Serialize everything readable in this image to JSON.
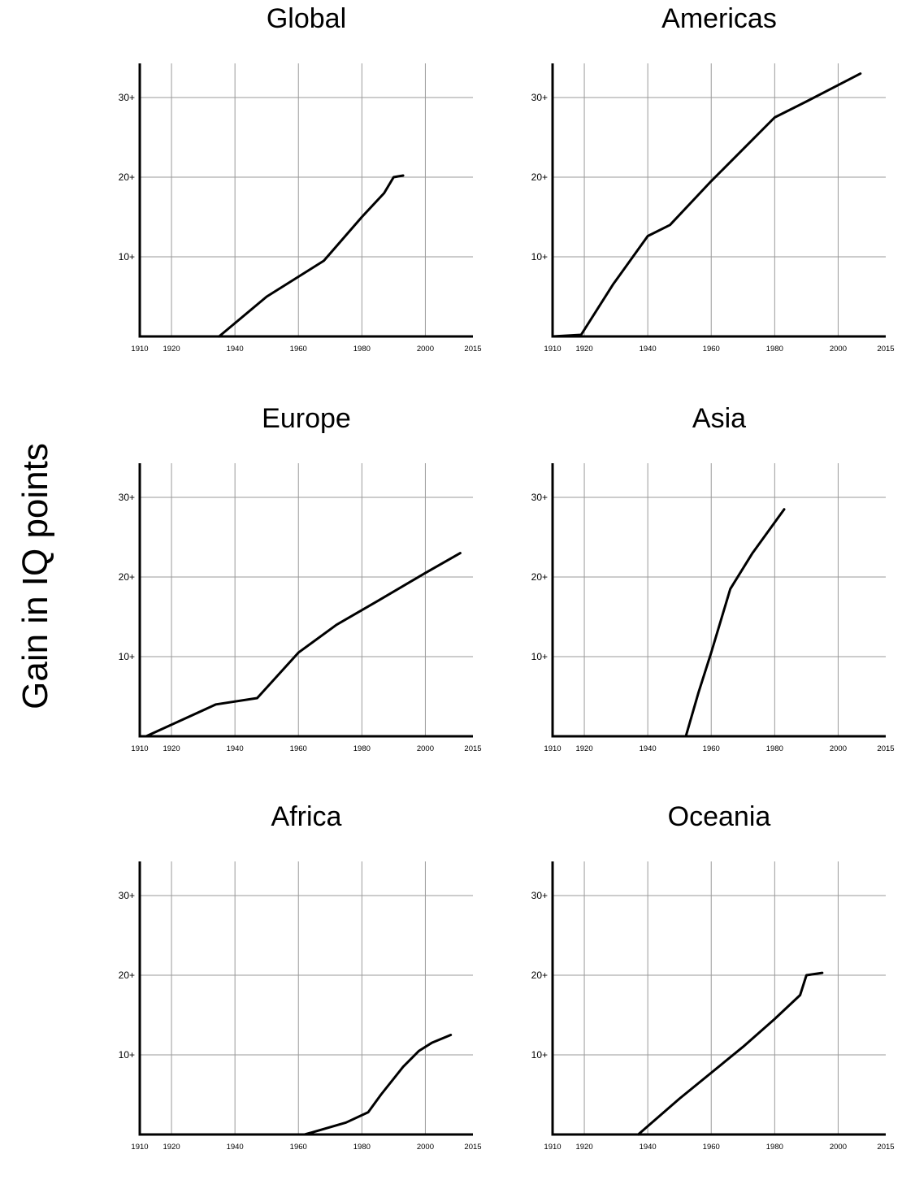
{
  "figure": {
    "ylabel": "Gain in IQ points"
  },
  "chart_data": [
    {
      "type": "line",
      "title": "Global",
      "xlim": [
        1910,
        2015
      ],
      "ylim": [
        0,
        30
      ],
      "xticks": [
        "1910",
        "1920",
        "1940",
        "1960",
        "1980",
        "2000",
        "2015"
      ],
      "yticks": [
        "10+",
        "20+",
        "30+"
      ],
      "grid": true,
      "x": [
        1935,
        1950,
        1968,
        1980,
        1987,
        1990,
        1993
      ],
      "y": [
        0,
        5,
        9.5,
        15,
        18,
        20,
        20.2
      ]
    },
    {
      "type": "line",
      "title": "Americas",
      "xlim": [
        1910,
        2015
      ],
      "ylim": [
        0,
        30
      ],
      "xticks": [
        "1910",
        "1920",
        "1940",
        "1960",
        "1980",
        "2000",
        "2015"
      ],
      "yticks": [
        "10+",
        "20+",
        "30+"
      ],
      "grid": true,
      "x": [
        1910,
        1919,
        1929,
        1940,
        1947,
        1960,
        1970,
        1980,
        1990,
        2007
      ],
      "y": [
        0,
        0.2,
        6.5,
        12.6,
        14,
        19.5,
        23.5,
        27.5,
        29.5,
        33
      ]
    },
    {
      "type": "line",
      "title": "Europe",
      "xlim": [
        1910,
        2015
      ],
      "ylim": [
        0,
        30
      ],
      "xticks": [
        "1910",
        "1920",
        "1940",
        "1960",
        "1980",
        "2000",
        "2015"
      ],
      "yticks": [
        "10+",
        "20+",
        "30+"
      ],
      "grid": true,
      "x": [
        1912,
        1934,
        1947,
        1960,
        1972,
        1985,
        2000,
        2011
      ],
      "y": [
        0,
        4,
        4.8,
        10.5,
        14,
        17,
        20.5,
        23
      ]
    },
    {
      "type": "line",
      "title": "Asia",
      "xlim": [
        1910,
        2015
      ],
      "ylim": [
        0,
        30
      ],
      "xticks": [
        "1910",
        "1920",
        "1940",
        "1960",
        "1980",
        "2000",
        "2015"
      ],
      "yticks": [
        "10+",
        "20+",
        "30+"
      ],
      "grid": true,
      "x": [
        1952,
        1956,
        1960,
        1966,
        1973,
        1983
      ],
      "y": [
        0,
        5.5,
        10.5,
        18.5,
        23,
        28.5
      ]
    },
    {
      "type": "line",
      "title": "Africa",
      "xlim": [
        1910,
        2015
      ],
      "ylim": [
        0,
        30
      ],
      "xticks": [
        "1910",
        "1920",
        "1940",
        "1960",
        "1980",
        "2000",
        "2015"
      ],
      "yticks": [
        "10+",
        "20+",
        "30+"
      ],
      "grid": true,
      "x": [
        1962,
        1975,
        1982,
        1986,
        1993,
        1998,
        2002,
        2008
      ],
      "y": [
        0,
        1.5,
        2.8,
        5,
        8.5,
        10.5,
        11.5,
        12.5
      ]
    },
    {
      "type": "line",
      "title": "Oceania",
      "xlim": [
        1910,
        2015
      ],
      "ylim": [
        0,
        30
      ],
      "xticks": [
        "1910",
        "1920",
        "1940",
        "1960",
        "1980",
        "2000",
        "2015"
      ],
      "yticks": [
        "10+",
        "20+",
        "30+"
      ],
      "grid": true,
      "x": [
        1937,
        1950,
        1970,
        1980,
        1988,
        1990,
        1995
      ],
      "y": [
        0,
        4.5,
        11,
        14.5,
        17.5,
        20,
        20.3
      ]
    }
  ]
}
